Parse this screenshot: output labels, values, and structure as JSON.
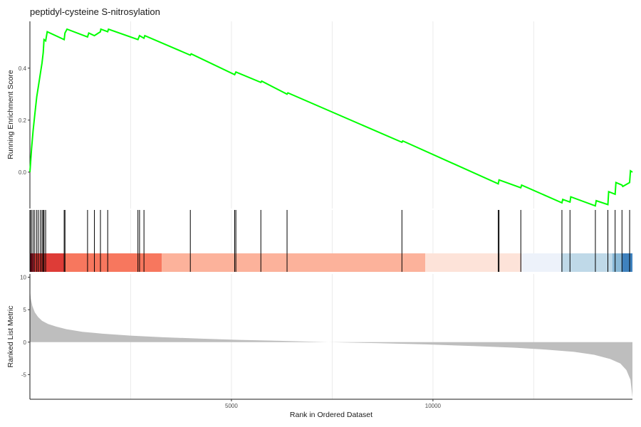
{
  "chart_data": {
    "type": "line",
    "title": "peptidyl-cysteine S-nitrosylation",
    "xlabel": "Rank in Ordered Dataset",
    "xlim": [
      0,
      14950
    ],
    "x_ticks": [
      5000,
      10000
    ],
    "x_tick_labels": [
      "5000",
      "10000"
    ],
    "grid": "vertical major and minor gridlines",
    "enrichment_panel": {
      "ylabel": "Running Enrichment Score",
      "ylim": [
        -0.14,
        0.58
      ],
      "y_ticks": [
        0.0,
        0.2,
        0.4
      ],
      "y_tick_labels": [
        "0.0",
        "0.2",
        "0.4"
      ],
      "line_color": "#00ff00",
      "series": [
        {
          "x": [
            0,
            40,
            80,
            120,
            170,
            210,
            260,
            300,
            330,
            350,
            390,
            430,
            850,
            870,
            920,
            1430,
            1460,
            1600,
            1750,
            1760,
            1930,
            1950,
            2680,
            2720,
            2830,
            2850,
            3980,
            4000,
            5080,
            5110,
            5730,
            5750,
            6380,
            6400,
            9230,
            9250,
            11620,
            11640,
            12180,
            12200,
            13200,
            13220,
            13400,
            13420,
            14030,
            14050,
            14340,
            14360,
            14520,
            14540,
            14690,
            14710,
            14880,
            14900,
            14950
          ],
          "y": [
            0.0,
            0.09,
            0.16,
            0.22,
            0.29,
            0.33,
            0.38,
            0.42,
            0.46,
            0.51,
            0.505,
            0.54,
            0.51,
            0.535,
            0.55,
            0.52,
            0.535,
            0.525,
            0.54,
            0.55,
            0.54,
            0.55,
            0.51,
            0.525,
            0.515,
            0.525,
            0.45,
            0.455,
            0.375,
            0.385,
            0.345,
            0.35,
            0.3,
            0.305,
            0.115,
            0.12,
            -0.045,
            -0.03,
            -0.06,
            -0.05,
            -0.118,
            -0.105,
            -0.115,
            -0.095,
            -0.13,
            -0.11,
            -0.125,
            -0.075,
            -0.085,
            -0.04,
            -0.05,
            -0.055,
            -0.04,
            0.005,
            0.0
          ]
        }
      ]
    },
    "gene_hits": {
      "x": [
        10,
        40,
        80,
        120,
        170,
        210,
        260,
        300,
        330,
        350,
        390,
        850,
        870,
        1430,
        1600,
        1750,
        1930,
        2680,
        2720,
        2830,
        3980,
        5080,
        5110,
        5730,
        6380,
        9230,
        11620,
        11640,
        12180,
        13200,
        13400,
        14030,
        14340,
        14520,
        14690,
        14880
      ]
    },
    "rank_color_bands": [
      {
        "from": 0,
        "to": 100,
        "color": "#b2182b"
      },
      {
        "from": 100,
        "to": 850,
        "color": "#de3c37"
      },
      {
        "from": 850,
        "to": 3270,
        "color": "#f7775e"
      },
      {
        "from": 3270,
        "to": 9810,
        "color": "#fcb29b"
      },
      {
        "from": 9810,
        "to": 12200,
        "color": "#fde3d9"
      },
      {
        "from": 12200,
        "to": 13180,
        "color": "#edf2fa"
      },
      {
        "from": 13180,
        "to": 14450,
        "color": "#bfd9e8"
      },
      {
        "from": 14450,
        "to": 14690,
        "color": "#8ab9d7"
      },
      {
        "from": 14690,
        "to": 14950,
        "color": "#3f82be"
      }
    ],
    "ranked_metric_panel": {
      "ylabel": "Ranked List Metric",
      "ylim": [
        -8.8,
        10.5
      ],
      "y_ticks": [
        -5,
        0,
        5,
        10
      ],
      "y_tick_labels": [
        "-5",
        "0",
        "5",
        "10"
      ],
      "fill_color": "#bebebe",
      "x": [
        0,
        20,
        60,
        120,
        200,
        300,
        450,
        650,
        900,
        1300,
        1800,
        2500,
        3300,
        4200,
        5200,
        6200,
        7400,
        8600,
        9800,
        11000,
        12000,
        12800,
        13500,
        14000,
        14400,
        14650,
        14800,
        14900,
        14950
      ],
      "y": [
        8.2,
        6.8,
        5.6,
        4.6,
        3.9,
        3.3,
        2.8,
        2.4,
        2.0,
        1.6,
        1.3,
        1.0,
        0.75,
        0.55,
        0.35,
        0.2,
        0.0,
        -0.15,
        -0.35,
        -0.6,
        -0.85,
        -1.15,
        -1.5,
        -1.95,
        -2.6,
        -3.3,
        -4.3,
        -5.8,
        -8.5
      ]
    }
  }
}
